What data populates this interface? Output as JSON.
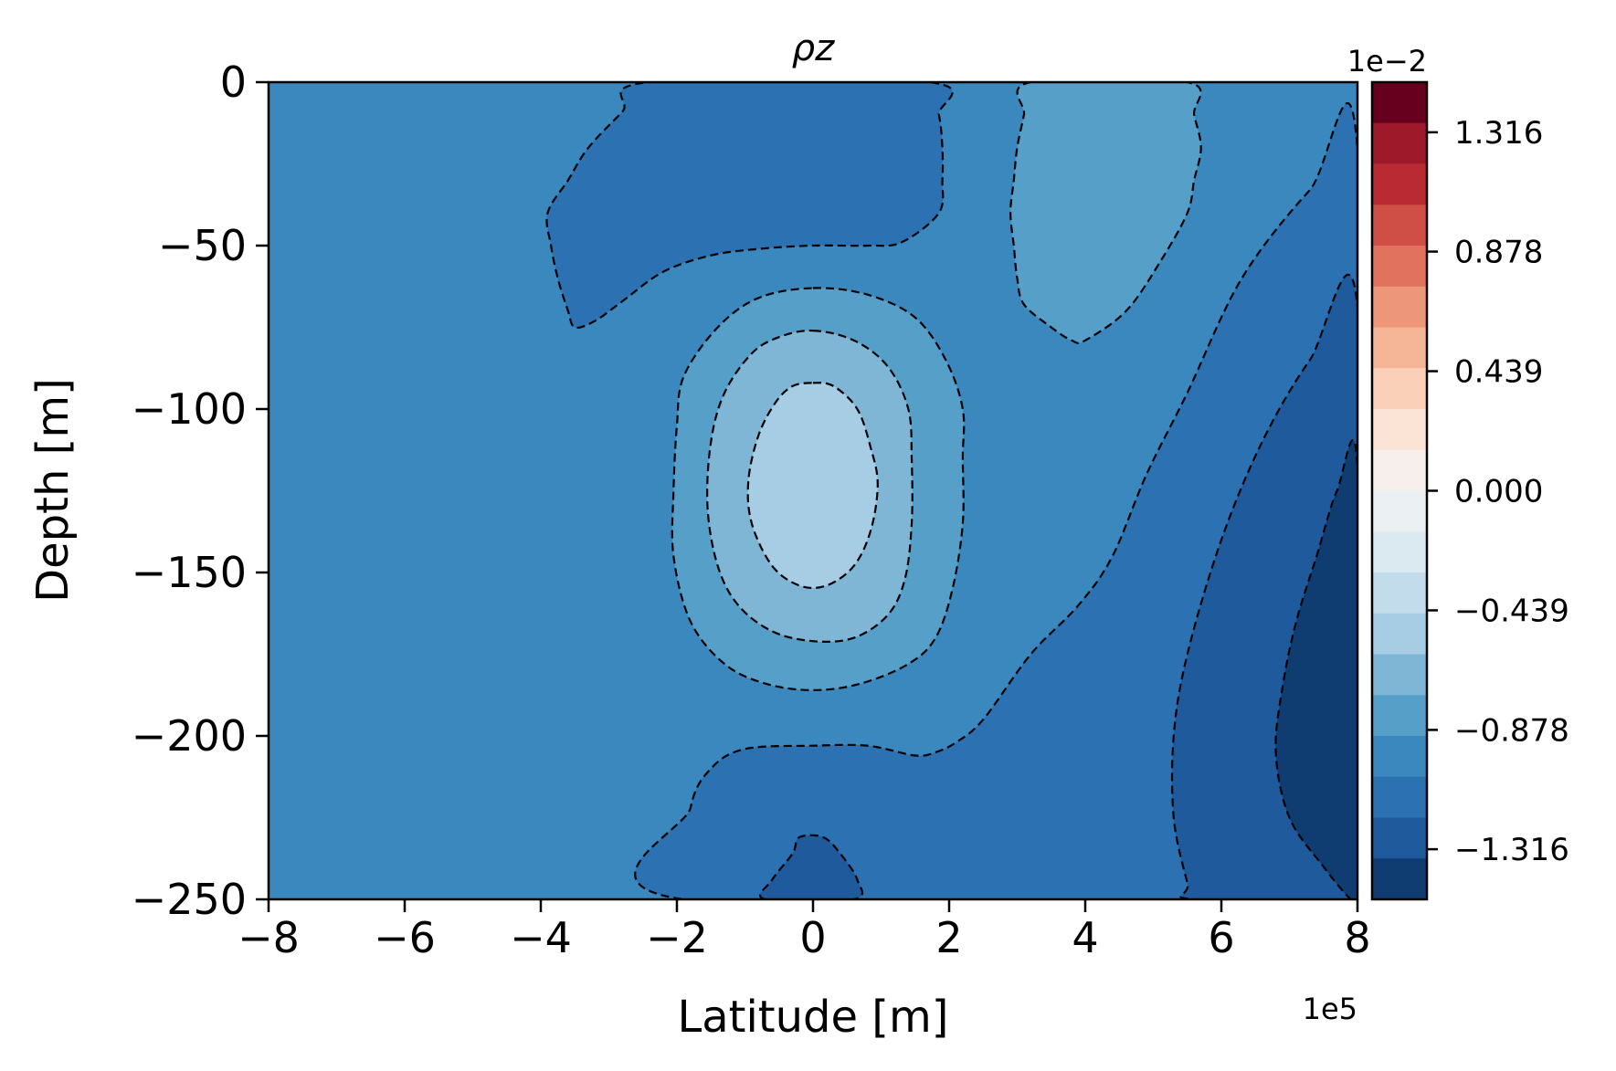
{
  "chart_data": {
    "type": "heatmap",
    "subtype": "filled-contour",
    "title": "ρz",
    "xlabel": "Latitude [m]",
    "ylabel": "Depth [m]",
    "x_offset_label": "1e5",
    "colorbar_offset_label": "1e−2",
    "xlim": [
      -8,
      8
    ],
    "ylim": [
      -250,
      0
    ],
    "x_ticks": [
      -8,
      -6,
      -4,
      -2,
      0,
      2,
      4,
      6,
      8
    ],
    "x_tick_labels": [
      "−8",
      "−6",
      "−4",
      "−2",
      "0",
      "2",
      "4",
      "6",
      "8"
    ],
    "y_ticks": [
      0,
      -50,
      -100,
      -150,
      -200,
      -250
    ],
    "y_tick_labels": [
      "0",
      "−50",
      "−100",
      "−150",
      "−200",
      "−250"
    ],
    "colormap": "RdBu_r",
    "colorbar_range": [
      -1.5,
      1.5
    ],
    "colorbar_ticks": [
      1.316,
      0.878,
      0.439,
      0.0,
      -0.439,
      -0.878,
      -1.316
    ],
    "colorbar_tick_labels": [
      "1.316",
      "0.878",
      "0.439",
      "0.000",
      "−0.439",
      "−0.878",
      "−1.316"
    ],
    "colorbar_levels": [
      {
        "hex": "#67001f"
      },
      {
        "hex": "#9e1a2b"
      },
      {
        "hex": "#b92a33"
      },
      {
        "hex": "#cf4e45"
      },
      {
        "hex": "#e0725e"
      },
      {
        "hex": "#ee9679"
      },
      {
        "hex": "#f5b597"
      },
      {
        "hex": "#fad0b9"
      },
      {
        "hex": "#fbe3d6"
      },
      {
        "hex": "#f6efeb"
      },
      {
        "hex": "#ebf0f3"
      },
      {
        "hex": "#dbe9f1"
      },
      {
        "hex": "#c3dceb"
      },
      {
        "hex": "#a6cde3"
      },
      {
        "hex": "#7fb6d6"
      },
      {
        "hex": "#569fc9"
      },
      {
        "hex": "#3b88be"
      },
      {
        "hex": "#2c71b1"
      },
      {
        "hex": "#1f5a9c"
      },
      {
        "hex": "#0f3d72"
      }
    ],
    "field_levels": {
      "background": "#3b88be",
      "level_minus_1": "#2c71b1",
      "level_minus_2": "#1f5a9c",
      "level_minus_3": "#0f3d72",
      "level_plus_1": "#569fc9",
      "level_plus_2": "#7fb6d6",
      "level_plus_3": "#a6cde3"
    },
    "regions": [
      {
        "name": "right-flank-minus-1",
        "level": "level_minus_1",
        "points": [
          [
            8,
            -250
          ],
          [
            8,
            -21
          ],
          [
            7.3,
            -33
          ],
          [
            6.3,
            -60
          ],
          [
            5.5,
            -95
          ],
          [
            4.9,
            -120
          ],
          [
            4.4,
            -145
          ],
          [
            3.9,
            -160
          ],
          [
            3.2,
            -175
          ],
          [
            2.5,
            -195
          ],
          [
            2.1,
            -202
          ],
          [
            1.8,
            -205
          ],
          [
            1.5,
            -206
          ],
          [
            0.8,
            -203
          ],
          [
            0,
            -203
          ],
          [
            -1,
            -204
          ],
          [
            -1.5,
            -210
          ],
          [
            -1.8,
            -222
          ],
          [
            -1.9,
            -250
          ]
        ]
      },
      {
        "name": "right-flank-minus-2",
        "level": "level_minus_2",
        "points": [
          [
            8,
            -250
          ],
          [
            8,
            -69
          ],
          [
            7.3,
            -85
          ],
          [
            6.6,
            -110
          ],
          [
            6,
            -140
          ],
          [
            5.5,
            -175
          ],
          [
            5.3,
            -200
          ],
          [
            5.3,
            -225
          ],
          [
            5.5,
            -245
          ],
          [
            5.6,
            -250
          ]
        ]
      },
      {
        "name": "right-flank-minus-3",
        "level": "level_minus_3",
        "points": [
          [
            8,
            -250
          ],
          [
            8,
            -118
          ],
          [
            7.7,
            -125
          ],
          [
            7.4,
            -145
          ],
          [
            7.1,
            -165
          ],
          [
            6.9,
            -185
          ],
          [
            6.8,
            -205
          ],
          [
            7,
            -225
          ],
          [
            7.5,
            -240
          ],
          [
            7.9,
            -250
          ]
        ]
      },
      {
        "name": "top-left-lobe-minus-1",
        "level": "level_minus_1",
        "points": [
          [
            -2.4,
            0
          ],
          [
            1.7,
            0
          ],
          [
            1.85,
            -10
          ],
          [
            1.9,
            -20
          ],
          [
            1.9,
            -30
          ],
          [
            1.85,
            -40
          ],
          [
            1.3,
            -49
          ],
          [
            0.8,
            -50
          ],
          [
            0,
            -50
          ],
          [
            -0.8,
            -51
          ],
          [
            -1.5,
            -53
          ],
          [
            -2.2,
            -58
          ],
          [
            -2.8,
            -67
          ],
          [
            -3.2,
            -73
          ],
          [
            -3.5,
            -75
          ],
          [
            -3.6,
            -70
          ],
          [
            -3.75,
            -60
          ],
          [
            -3.85,
            -50
          ],
          [
            -3.9,
            -40
          ],
          [
            -3.6,
            -30
          ],
          [
            -3.3,
            -20
          ],
          [
            -2.8,
            -9
          ]
        ]
      },
      {
        "name": "top-right-lobe-plus-1",
        "level": "level_plus_1",
        "points": [
          [
            3.2,
            0
          ],
          [
            5.5,
            0
          ],
          [
            5.6,
            -10
          ],
          [
            5.7,
            -20
          ],
          [
            5.6,
            -30
          ],
          [
            5.5,
            -40
          ],
          [
            5.1,
            -55
          ],
          [
            4.6,
            -70
          ],
          [
            4,
            -79
          ],
          [
            3.8,
            -79
          ],
          [
            3.5,
            -75
          ],
          [
            3.1,
            -68
          ],
          [
            3,
            -60
          ],
          [
            2.95,
            -50
          ],
          [
            2.9,
            -40
          ],
          [
            2.95,
            -30
          ],
          [
            3,
            -20
          ],
          [
            3.1,
            -10
          ]
        ]
      },
      {
        "name": "bottom-bump-minus-2",
        "level": "level_minus_2",
        "points": [
          [
            -0.7,
            -250
          ],
          [
            -0.6,
            -244
          ],
          [
            -0.3,
            -236
          ],
          [
            -0.2,
            -231
          ],
          [
            0.15,
            -231
          ],
          [
            0.4,
            -236
          ],
          [
            0.65,
            -244
          ],
          [
            0.6,
            -250
          ]
        ]
      },
      {
        "name": "center-ring-plus-1",
        "level": "level_plus_1",
        "points": [
          [
            0,
            -63
          ],
          [
            0.8,
            -65
          ],
          [
            1.5,
            -72
          ],
          [
            1.95,
            -85
          ],
          [
            2.2,
            -100
          ],
          [
            2.2,
            -115
          ],
          [
            2.2,
            -135
          ],
          [
            2.05,
            -155
          ],
          [
            1.8,
            -170
          ],
          [
            1.4,
            -178
          ],
          [
            0.7,
            -184
          ],
          [
            0,
            -186
          ],
          [
            -0.7,
            -184
          ],
          [
            -1.3,
            -178
          ],
          [
            -1.8,
            -165
          ],
          [
            -2.05,
            -145
          ],
          [
            -2.05,
            -125
          ],
          [
            -2,
            -105
          ],
          [
            -1.9,
            -90
          ],
          [
            -1.4,
            -75
          ],
          [
            -0.8,
            -66
          ]
        ]
      },
      {
        "name": "center-ring-plus-2",
        "level": "level_plus_2",
        "points": [
          [
            0,
            -76
          ],
          [
            0.6,
            -79
          ],
          [
            1.1,
            -87
          ],
          [
            1.4,
            -100
          ],
          [
            1.45,
            -115
          ],
          [
            1.45,
            -135
          ],
          [
            1.35,
            -152
          ],
          [
            1.1,
            -163
          ],
          [
            0.6,
            -170
          ],
          [
            0,
            -171
          ],
          [
            -0.6,
            -168
          ],
          [
            -1.1,
            -160
          ],
          [
            -1.4,
            -148
          ],
          [
            -1.55,
            -130
          ],
          [
            -1.5,
            -110
          ],
          [
            -1.3,
            -95
          ],
          [
            -0.9,
            -83
          ],
          [
            -0.5,
            -78
          ]
        ]
      },
      {
        "name": "center-core-plus-3",
        "level": "level_plus_3",
        "points": [
          [
            0,
            -92
          ],
          [
            0.3,
            -93
          ],
          [
            0.65,
            -100
          ],
          [
            0.85,
            -112
          ],
          [
            0.95,
            -123
          ],
          [
            0.85,
            -137
          ],
          [
            0.6,
            -148
          ],
          [
            0.2,
            -154
          ],
          [
            -0.2,
            -154
          ],
          [
            -0.6,
            -148
          ],
          [
            -0.9,
            -135
          ],
          [
            -0.95,
            -122
          ],
          [
            -0.8,
            -108
          ],
          [
            -0.55,
            -98
          ],
          [
            -0.3,
            -93
          ]
        ]
      }
    ]
  }
}
